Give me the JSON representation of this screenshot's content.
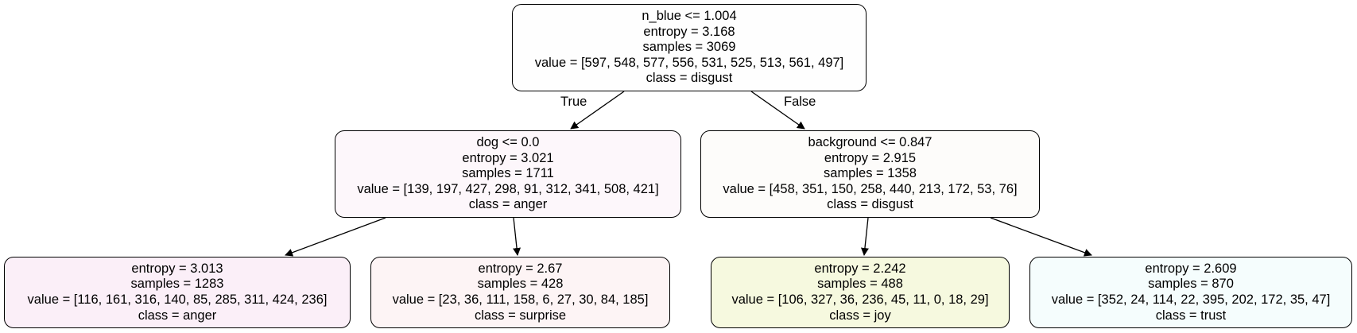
{
  "tree": {
    "root": {
      "split": "n_blue <= 1.004",
      "entropy": "entropy = 3.168",
      "samples": "samples = 3069",
      "value": "value = [597, 548, 577, 556, 531, 525, 513, 561, 497]",
      "class": "class = disgust",
      "fill": "#fefefe"
    },
    "left": {
      "split": "dog <= 0.0",
      "entropy": "entropy = 3.021",
      "samples": "samples = 1711",
      "value": "value = [139, 197, 427, 298, 91, 312, 341, 508, 421]",
      "class": "class = anger",
      "fill": "#fdf7fb"
    },
    "right": {
      "split": "background <= 0.847",
      "entropy": "entropy = 2.915",
      "samples": "samples = 1358",
      "value": "value = [458, 351, 150, 258, 440, 213, 172, 53, 76]",
      "class": "class = disgust",
      "fill": "#fdfcfa"
    },
    "left_left": {
      "entropy": "entropy = 3.013",
      "samples": "samples = 1283",
      "value": "value = [116, 161, 316, 140, 85, 285, 311, 424, 236]",
      "class": "class = anger",
      "fill": "#fbeff8"
    },
    "left_right": {
      "entropy": "entropy = 2.67",
      "samples": "samples = 428",
      "value": "value = [23, 36, 111, 158, 6, 27, 30, 84, 185]",
      "class": "class = surprise",
      "fill": "#fdf4f5"
    },
    "right_left": {
      "entropy": "entropy = 2.242",
      "samples": "samples = 488",
      "value": "value = [106, 327, 36, 236, 45, 11, 0, 18, 29]",
      "class": "class = joy",
      "fill": "#f6f9df"
    },
    "right_right": {
      "entropy": "entropy = 2.609",
      "samples": "samples = 870",
      "value": "value = [352, 24, 114, 22, 395, 202, 172, 35, 47]",
      "class": "class = trust",
      "fill": "#f5fdfd"
    }
  },
  "edge_labels": {
    "true": "True",
    "false": "False"
  }
}
